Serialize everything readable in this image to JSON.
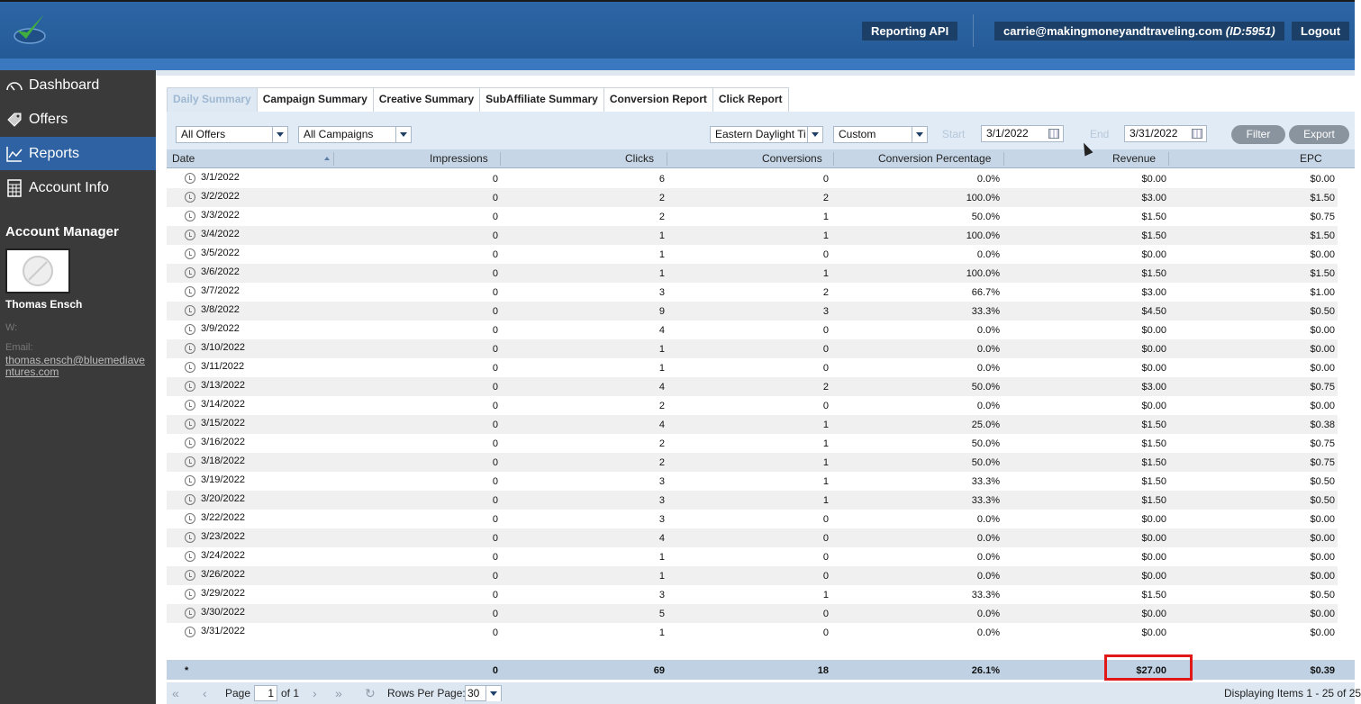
{
  "header": {
    "reporting_api": "Reporting API",
    "user_email": "carrie@makingmoneyandtraveling.com",
    "user_id": "(ID:5951)",
    "logout": "Logout"
  },
  "sidebar": {
    "items": [
      {
        "label": "Dashboard",
        "icon": "gauge-icon"
      },
      {
        "label": "Offers",
        "icon": "tag-icon"
      },
      {
        "label": "Reports",
        "icon": "chart-icon"
      },
      {
        "label": "Account Info",
        "icon": "calculator-icon"
      }
    ],
    "active": "Reports",
    "account_manager_title": "Account Manager",
    "manager_name": "Thomas Ensch",
    "manager_w": "W:",
    "email_label": "Email:",
    "manager_email": "thomas.ensch@bluemediaventures.com"
  },
  "tabs": [
    "Daily Summary",
    "Campaign Summary",
    "Creative Summary",
    "SubAffiliate Summary",
    "Conversion Report",
    "Click Report"
  ],
  "active_tab": "Daily Summary",
  "filters": {
    "offers": "All Offers",
    "campaigns": "All Campaigns",
    "timezone": "Eastern Daylight Ti",
    "range": "Custom",
    "start_label": "Start",
    "start_date": "3/1/2022",
    "end_label": "End",
    "end_date": "3/31/2022",
    "filter_btn": "Filter",
    "export_btn": "Export"
  },
  "columns": [
    "Date",
    "Impressions",
    "Clicks",
    "Conversions",
    "Conversion Percentage",
    "Revenue",
    "EPC"
  ],
  "rows": [
    [
      "3/1/2022",
      "0",
      "6",
      "0",
      "0.0%",
      "$0.00",
      "$0.00"
    ],
    [
      "3/2/2022",
      "0",
      "2",
      "2",
      "100.0%",
      "$3.00",
      "$1.50"
    ],
    [
      "3/3/2022",
      "0",
      "2",
      "1",
      "50.0%",
      "$1.50",
      "$0.75"
    ],
    [
      "3/4/2022",
      "0",
      "1",
      "1",
      "100.0%",
      "$1.50",
      "$1.50"
    ],
    [
      "3/5/2022",
      "0",
      "1",
      "0",
      "0.0%",
      "$0.00",
      "$0.00"
    ],
    [
      "3/6/2022",
      "0",
      "1",
      "1",
      "100.0%",
      "$1.50",
      "$1.50"
    ],
    [
      "3/7/2022",
      "0",
      "3",
      "2",
      "66.7%",
      "$3.00",
      "$1.00"
    ],
    [
      "3/8/2022",
      "0",
      "9",
      "3",
      "33.3%",
      "$4.50",
      "$0.50"
    ],
    [
      "3/9/2022",
      "0",
      "4",
      "0",
      "0.0%",
      "$0.00",
      "$0.00"
    ],
    [
      "3/10/2022",
      "0",
      "1",
      "0",
      "0.0%",
      "$0.00",
      "$0.00"
    ],
    [
      "3/11/2022",
      "0",
      "1",
      "0",
      "0.0%",
      "$0.00",
      "$0.00"
    ],
    [
      "3/13/2022",
      "0",
      "4",
      "2",
      "50.0%",
      "$3.00",
      "$0.75"
    ],
    [
      "3/14/2022",
      "0",
      "2",
      "0",
      "0.0%",
      "$0.00",
      "$0.00"
    ],
    [
      "3/15/2022",
      "0",
      "4",
      "1",
      "25.0%",
      "$1.50",
      "$0.38"
    ],
    [
      "3/16/2022",
      "0",
      "2",
      "1",
      "50.0%",
      "$1.50",
      "$0.75"
    ],
    [
      "3/18/2022",
      "0",
      "2",
      "1",
      "50.0%",
      "$1.50",
      "$0.75"
    ],
    [
      "3/19/2022",
      "0",
      "3",
      "1",
      "33.3%",
      "$1.50",
      "$0.50"
    ],
    [
      "3/20/2022",
      "0",
      "3",
      "1",
      "33.3%",
      "$1.50",
      "$0.50"
    ],
    [
      "3/22/2022",
      "0",
      "3",
      "0",
      "0.0%",
      "$0.00",
      "$0.00"
    ],
    [
      "3/23/2022",
      "0",
      "4",
      "0",
      "0.0%",
      "$0.00",
      "$0.00"
    ],
    [
      "3/24/2022",
      "0",
      "1",
      "0",
      "0.0%",
      "$0.00",
      "$0.00"
    ],
    [
      "3/26/2022",
      "0",
      "1",
      "0",
      "0.0%",
      "$0.00",
      "$0.00"
    ],
    [
      "3/29/2022",
      "0",
      "3",
      "1",
      "33.3%",
      "$1.50",
      "$0.50"
    ],
    [
      "3/30/2022",
      "0",
      "5",
      "0",
      "0.0%",
      "$0.00",
      "$0.00"
    ],
    [
      "3/31/2022",
      "0",
      "1",
      "0",
      "0.0%",
      "$0.00",
      "$0.00"
    ]
  ],
  "totals": [
    "*",
    "0",
    "69",
    "18",
    "26.1%",
    "$27.00",
    "$0.39"
  ],
  "pager": {
    "page_label": "Page",
    "page": "1",
    "of": "of 1",
    "rows_label": "Rows Per Page:",
    "rows_per_page": "30",
    "displaying": "Displaying Items 1 - 25 of 25"
  },
  "colors": {
    "header": "#2d66a6",
    "sidebar": "#3a3a3a",
    "active_nav": "#2e62a2",
    "highlight": "#e01818"
  }
}
